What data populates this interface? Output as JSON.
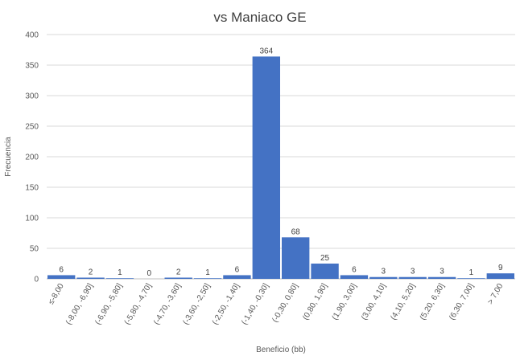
{
  "chart_data": {
    "type": "bar",
    "title": "vs Maniaco GE",
    "xlabel": "Beneficio (bb)",
    "ylabel": "Frecuencia",
    "ylim": [
      0,
      400
    ],
    "yticks": [
      0,
      50,
      100,
      150,
      200,
      250,
      300,
      350,
      400
    ],
    "grid": true,
    "legend": "none",
    "bar_color": "#4472c4",
    "categories": [
      "≤-8,00",
      "(-8,00, -6,90]",
      "(-6,90, -5,80]",
      "(-5,80, -4,70]",
      "(-4,70, -3,60]",
      "(-3,60, -2,50]",
      "(-2,50, -1,40]",
      "(-1,40, -0,30]",
      "(-0,30, 0,80]",
      "(0,80, 1,90]",
      "(1,90, 3,00]",
      "(3,00, 4,10]",
      "(4,10, 5,20]",
      "(5,20, 6,30]",
      "(6,30, 7,00]",
      "> 7,00"
    ],
    "values": [
      6,
      2,
      1,
      0,
      2,
      1,
      6,
      364,
      68,
      25,
      6,
      3,
      3,
      3,
      1,
      9
    ]
  }
}
